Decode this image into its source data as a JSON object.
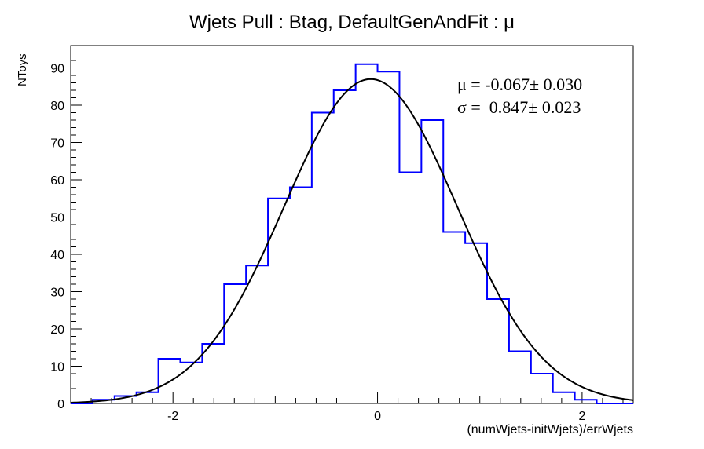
{
  "chart_data": {
    "type": "histogram",
    "title": "Wjets Pull : Btag, DefaultGenAndFit : μ",
    "xlabel": "(numWjets-initWjets)/errWjets",
    "ylabel": "NToys",
    "xlim": [
      -3.0,
      2.5
    ],
    "ylim": [
      0,
      96
    ],
    "x_ticks": [
      -2,
      0,
      2
    ],
    "x_tick_labels": [
      "-2",
      "0",
      "2"
    ],
    "y_ticks": [
      0,
      10,
      20,
      30,
      40,
      50,
      60,
      70,
      80,
      90
    ],
    "y_tick_labels": [
      "0",
      "10",
      "20",
      "30",
      "40",
      "50",
      "60",
      "70",
      "80",
      "90"
    ],
    "grid": false,
    "bin_width": 0.2143,
    "bin_edges": [
      -3.0,
      -2.7857,
      -2.5714,
      -2.3571,
      -2.1429,
      -1.9286,
      -1.7143,
      -1.5,
      -1.2857,
      -1.0714,
      -0.8571,
      -0.6429,
      -0.4286,
      -0.2143,
      0.0,
      0.2143,
      0.4286,
      0.6429,
      0.8571,
      1.0714,
      1.2857,
      1.5,
      1.7143,
      1.9286,
      2.1429,
      2.3571,
      2.5
    ],
    "series": [
      {
        "type": "histogram",
        "color": "#0000ff",
        "counts": [
          0,
          1,
          2,
          3,
          12,
          11,
          16,
          32,
          37,
          55,
          58,
          78,
          84,
          91,
          89,
          62,
          76,
          46,
          43,
          28,
          14,
          8,
          3,
          1,
          0,
          0
        ]
      },
      {
        "type": "gaussian-fit",
        "color": "#000000",
        "amplitude": 87,
        "mean": -0.067,
        "sigma": 0.847
      }
    ],
    "fit_stats": {
      "mu_line": "μ = -0.067± 0.030",
      "sigma_line": "σ =  0.847± 0.023"
    }
  }
}
